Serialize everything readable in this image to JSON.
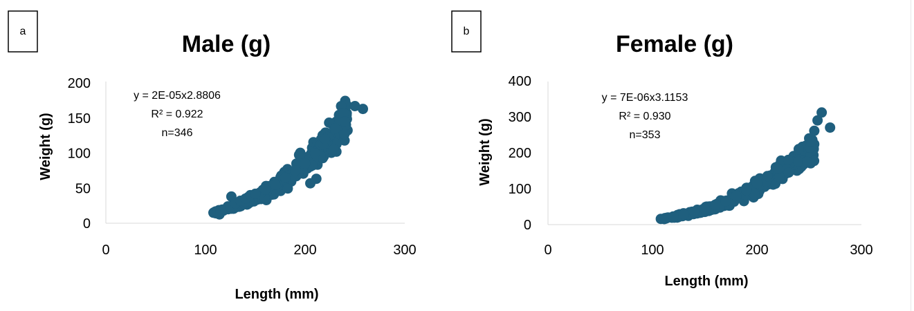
{
  "chart_data": [
    {
      "type": "scatter",
      "panel": "a",
      "title": "Male (g)",
      "xlabel": "Length (mm)",
      "ylabel": "Weight (g)",
      "xlim": [
        0,
        300
      ],
      "ylim": [
        0,
        200
      ],
      "xticks": [
        "0",
        "100",
        "200",
        "300"
      ],
      "yticks": [
        "0",
        "50",
        "100",
        "150",
        "200"
      ],
      "annotations": [
        "y = 2E-05x2.8806",
        "R² = 0.922",
        "n=346"
      ],
      "color": "#1f5f7e",
      "n": 346,
      "fit": {
        "a": 2e-05,
        "b": 2.8806
      },
      "x_range": [
        108,
        258
      ],
      "points": [
        [
          108,
          15
        ],
        [
          112,
          16
        ],
        [
          115,
          17
        ],
        [
          120,
          20
        ],
        [
          125,
          23
        ],
        [
          126,
          38
        ],
        [
          130,
          28
        ],
        [
          135,
          32
        ],
        [
          140,
          35
        ],
        [
          145,
          40
        ],
        [
          150,
          42
        ],
        [
          160,
          48
        ],
        [
          170,
          55
        ],
        [
          180,
          65
        ],
        [
          190,
          75
        ],
        [
          200,
          85
        ],
        [
          210,
          100
        ],
        [
          220,
          120
        ],
        [
          230,
          135
        ],
        [
          240,
          145
        ],
        [
          250,
          167
        ],
        [
          258,
          163
        ]
      ]
    },
    {
      "type": "scatter",
      "panel": "b",
      "title": "Female (g)",
      "xlabel": "Length (mm)",
      "ylabel": "Weight (g)",
      "xlim": [
        0,
        300
      ],
      "ylim": [
        0,
        400
      ],
      "xticks": [
        "0",
        "100",
        "200",
        "300"
      ],
      "yticks": [
        "0",
        "100",
        "200",
        "300",
        "400"
      ],
      "annotations": [
        "y = 7E-06x3.1153",
        "R² = 0.930",
        "n=353"
      ],
      "color": "#1f5f7e",
      "n": 353,
      "fit": {
        "a": 7e-06,
        "b": 3.1153
      },
      "x_range": [
        108,
        270
      ],
      "points": [
        [
          108,
          16
        ],
        [
          112,
          18
        ],
        [
          120,
          22
        ],
        [
          130,
          28
        ],
        [
          140,
          35
        ],
        [
          150,
          45
        ],
        [
          160,
          55
        ],
        [
          170,
          65
        ],
        [
          180,
          80
        ],
        [
          190,
          95
        ],
        [
          200,
          115
        ],
        [
          210,
          135
        ],
        [
          220,
          155
        ],
        [
          230,
          180
        ],
        [
          240,
          210
        ],
        [
          250,
          240
        ],
        [
          258,
          290
        ],
        [
          262,
          312
        ],
        [
          270,
          270
        ],
        [
          248,
          175
        ],
        [
          252,
          230
        ]
      ]
    }
  ]
}
